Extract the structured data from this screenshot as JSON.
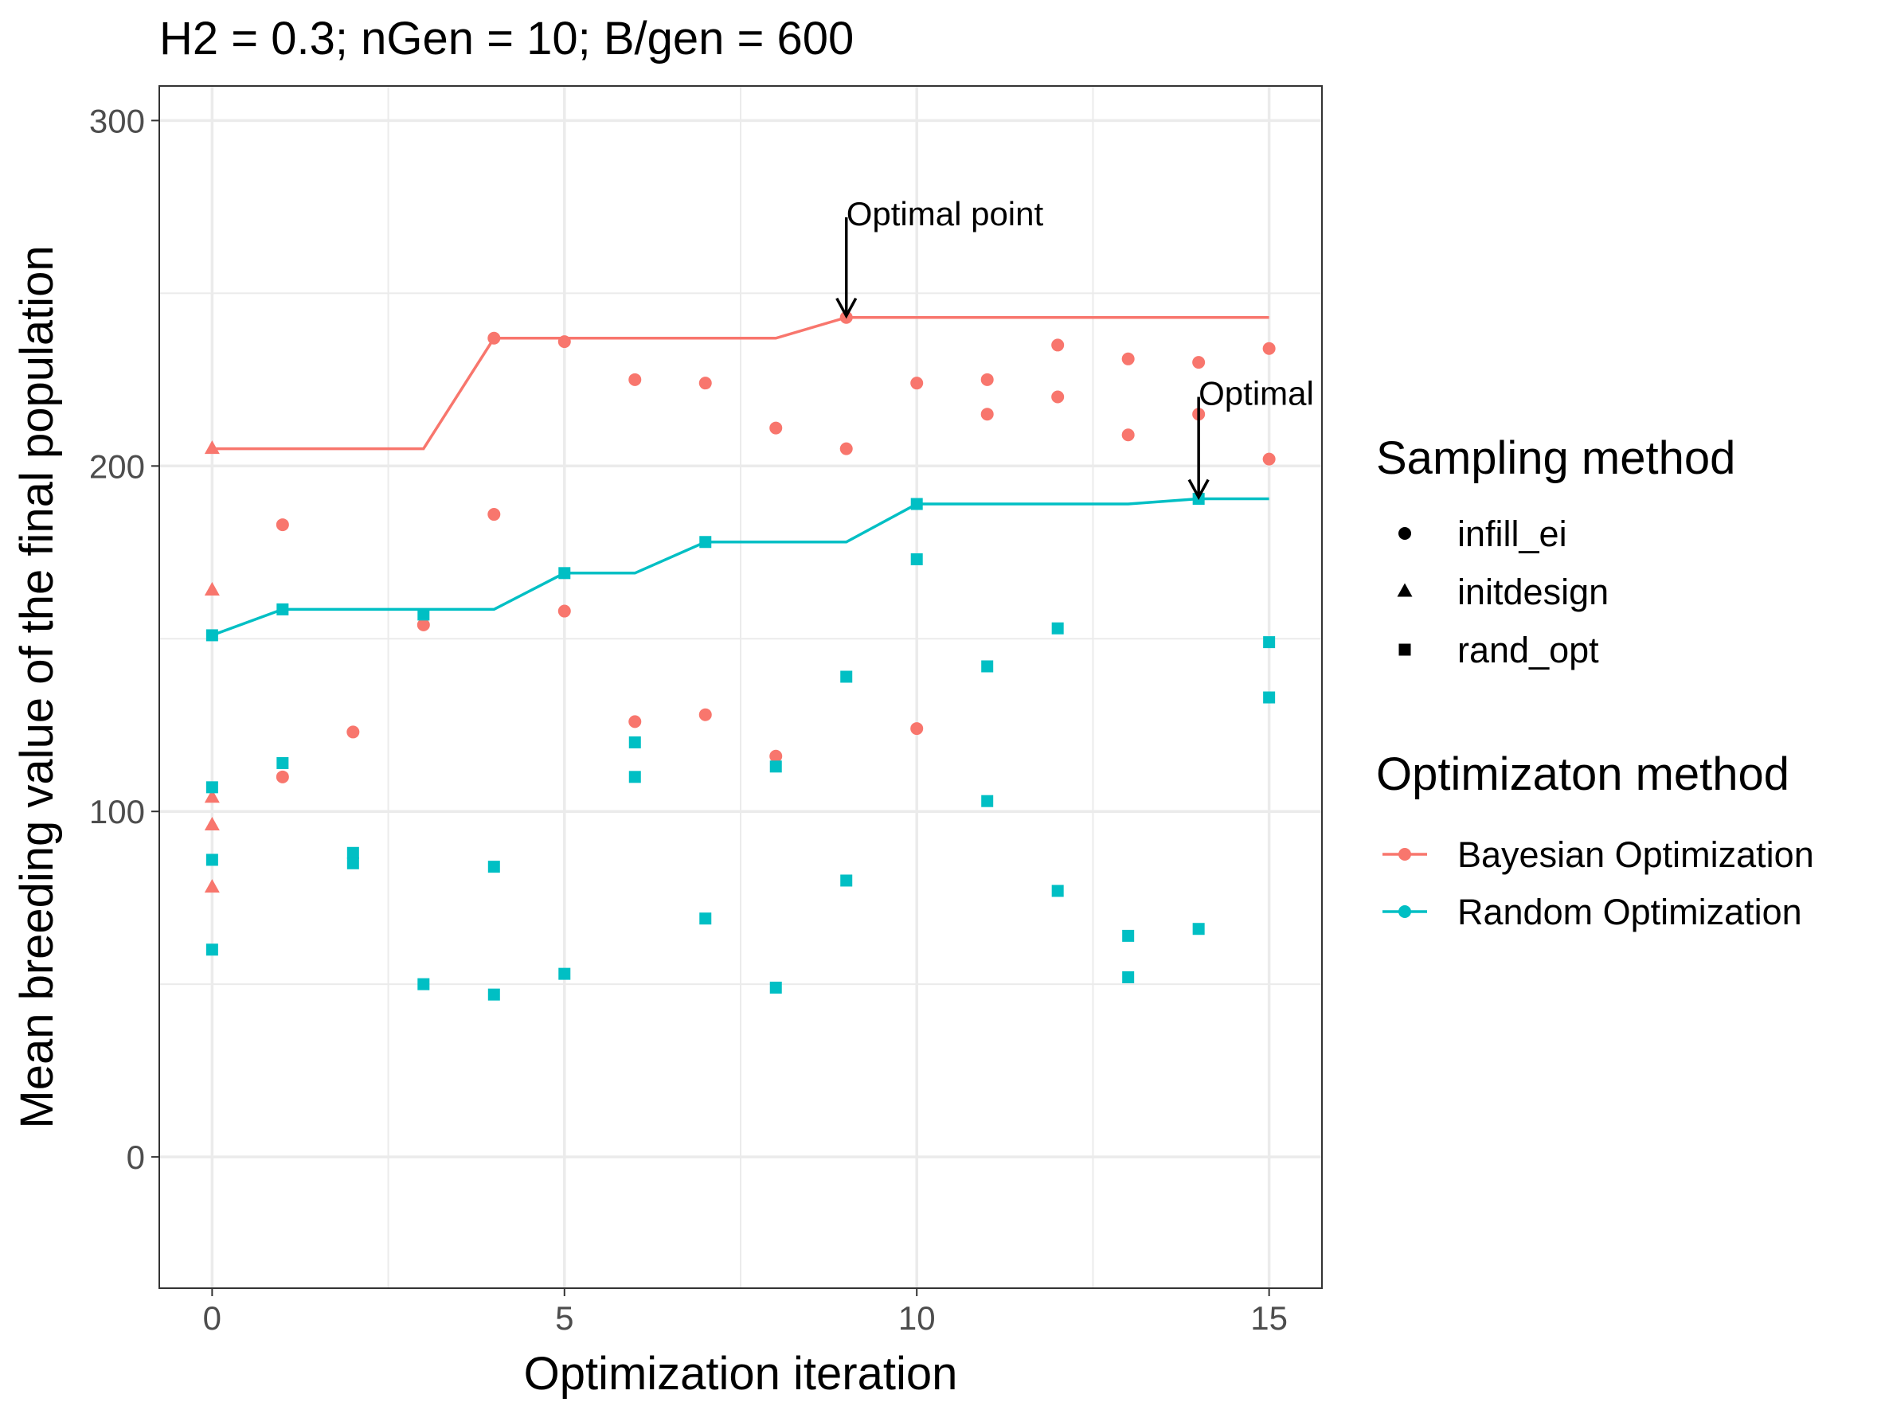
{
  "chart_data": {
    "type": "scatter",
    "title": "H2 = 0.3; nGen = 10; B/gen = 600",
    "xlabel": "Optimization iteration",
    "ylabel": "Mean breeding value of the final population",
    "xlim": [
      -0.75,
      15.75
    ],
    "ylim": [
      -38,
      310
    ],
    "x_ticks": [
      0,
      5,
      10,
      15
    ],
    "y_ticks": [
      0,
      100,
      200,
      300
    ],
    "x_minor": [
      2.5,
      7.5,
      12.5
    ],
    "y_minor": [
      50,
      150,
      250
    ],
    "grid": true,
    "legend_position": "right",
    "shape_legend": {
      "title": "Sampling method",
      "items": [
        {
          "shape": "circle",
          "label": "infill_ei"
        },
        {
          "shape": "triangle",
          "label": "initdesign"
        },
        {
          "shape": "square",
          "label": "rand_opt"
        }
      ]
    },
    "color_legend": {
      "title": "Optimizaton method",
      "items": [
        {
          "color": "#F8766D",
          "label": "Bayesian Optimization"
        },
        {
          "color": "#00BFC4",
          "label": "Random Optimization"
        }
      ]
    },
    "series": [
      {
        "name": "Bayesian Optimization",
        "color": "#F8766D",
        "line": [
          [
            0,
            205
          ],
          [
            3,
            205
          ],
          [
            4,
            237
          ],
          [
            8,
            237
          ],
          [
            9,
            243
          ],
          [
            15,
            243
          ]
        ],
        "points": [
          {
            "x": 0,
            "y": 205,
            "shape": "triangle"
          },
          {
            "x": 0,
            "y": 164,
            "shape": "triangle"
          },
          {
            "x": 0,
            "y": 104,
            "shape": "triangle"
          },
          {
            "x": 0,
            "y": 96,
            "shape": "triangle"
          },
          {
            "x": 0,
            "y": 78,
            "shape": "triangle"
          },
          {
            "x": 1,
            "y": 183,
            "shape": "circle"
          },
          {
            "x": 1,
            "y": 110,
            "shape": "circle"
          },
          {
            "x": 2,
            "y": 123,
            "shape": "circle"
          },
          {
            "x": 3,
            "y": 154,
            "shape": "circle"
          },
          {
            "x": 4,
            "y": 237,
            "shape": "circle"
          },
          {
            "x": 4,
            "y": 186,
            "shape": "circle"
          },
          {
            "x": 5,
            "y": 236,
            "shape": "circle"
          },
          {
            "x": 5,
            "y": 158,
            "shape": "circle"
          },
          {
            "x": 6,
            "y": 225,
            "shape": "circle"
          },
          {
            "x": 6,
            "y": 126,
            "shape": "circle"
          },
          {
            "x": 7,
            "y": 224,
            "shape": "circle"
          },
          {
            "x": 7,
            "y": 128,
            "shape": "circle"
          },
          {
            "x": 8,
            "y": 211,
            "shape": "circle"
          },
          {
            "x": 8,
            "y": 116,
            "shape": "circle"
          },
          {
            "x": 9,
            "y": 243,
            "shape": "circle"
          },
          {
            "x": 9,
            "y": 205,
            "shape": "circle"
          },
          {
            "x": 10,
            "y": 224,
            "shape": "circle"
          },
          {
            "x": 10,
            "y": 124,
            "shape": "circle"
          },
          {
            "x": 11,
            "y": 225,
            "shape": "circle"
          },
          {
            "x": 11,
            "y": 215,
            "shape": "circle"
          },
          {
            "x": 12,
            "y": 235,
            "shape": "circle"
          },
          {
            "x": 12,
            "y": 220,
            "shape": "circle"
          },
          {
            "x": 13,
            "y": 231,
            "shape": "circle"
          },
          {
            "x": 13,
            "y": 209,
            "shape": "circle"
          },
          {
            "x": 14,
            "y": 230,
            "shape": "circle"
          },
          {
            "x": 14,
            "y": 215,
            "shape": "circle"
          },
          {
            "x": 15,
            "y": 234,
            "shape": "circle"
          },
          {
            "x": 15,
            "y": 202,
            "shape": "circle"
          }
        ]
      },
      {
        "name": "Random Optimization",
        "color": "#00BFC4",
        "line": [
          [
            0,
            151
          ],
          [
            1,
            158.5
          ],
          [
            4,
            158.5
          ],
          [
            5,
            169
          ],
          [
            6,
            169
          ],
          [
            7,
            178
          ],
          [
            9,
            178
          ],
          [
            10,
            189
          ],
          [
            13,
            189
          ],
          [
            14,
            190.5
          ],
          [
            15,
            190.5
          ]
        ],
        "points": [
          {
            "x": 0,
            "y": 151,
            "shape": "square"
          },
          {
            "x": 0,
            "y": 107,
            "shape": "square"
          },
          {
            "x": 0,
            "y": 86,
            "shape": "square"
          },
          {
            "x": 0,
            "y": 60,
            "shape": "square"
          },
          {
            "x": 1,
            "y": 158.5,
            "shape": "square"
          },
          {
            "x": 1,
            "y": 114,
            "shape": "square"
          },
          {
            "x": 2,
            "y": 88,
            "shape": "square"
          },
          {
            "x": 2,
            "y": 85,
            "shape": "square"
          },
          {
            "x": 3,
            "y": 157,
            "shape": "square"
          },
          {
            "x": 3,
            "y": 50,
            "shape": "square"
          },
          {
            "x": 4,
            "y": 84,
            "shape": "square"
          },
          {
            "x": 4,
            "y": 47,
            "shape": "square"
          },
          {
            "x": 5,
            "y": 169,
            "shape": "square"
          },
          {
            "x": 5,
            "y": 53,
            "shape": "square"
          },
          {
            "x": 6,
            "y": 120,
            "shape": "square"
          },
          {
            "x": 6,
            "y": 110,
            "shape": "square"
          },
          {
            "x": 7,
            "y": 178,
            "shape": "square"
          },
          {
            "x": 7,
            "y": 69,
            "shape": "square"
          },
          {
            "x": 8,
            "y": 113,
            "shape": "square"
          },
          {
            "x": 8,
            "y": 49,
            "shape": "square"
          },
          {
            "x": 9,
            "y": 139,
            "shape": "square"
          },
          {
            "x": 9,
            "y": 80,
            "shape": "square"
          },
          {
            "x": 10,
            "y": 189,
            "shape": "square"
          },
          {
            "x": 10,
            "y": 173,
            "shape": "square"
          },
          {
            "x": 11,
            "y": 142,
            "shape": "square"
          },
          {
            "x": 11,
            "y": 103,
            "shape": "square"
          },
          {
            "x": 12,
            "y": 153,
            "shape": "square"
          },
          {
            "x": 12,
            "y": 77,
            "shape": "square"
          },
          {
            "x": 13,
            "y": 64,
            "shape": "square"
          },
          {
            "x": 13,
            "y": 52,
            "shape": "square"
          },
          {
            "x": 14,
            "y": 190.5,
            "shape": "square"
          },
          {
            "x": 14,
            "y": 66,
            "shape": "square"
          },
          {
            "x": 15,
            "y": 149,
            "shape": "square"
          },
          {
            "x": 15,
            "y": 133,
            "shape": "square"
          }
        ]
      }
    ],
    "annotations": [
      {
        "text": "Optimal point",
        "x": 9,
        "y": 243,
        "arrow_from_y": 272
      },
      {
        "text": "Optimal",
        "x": 14,
        "y": 190.5,
        "arrow_from_y": 220
      }
    ]
  }
}
